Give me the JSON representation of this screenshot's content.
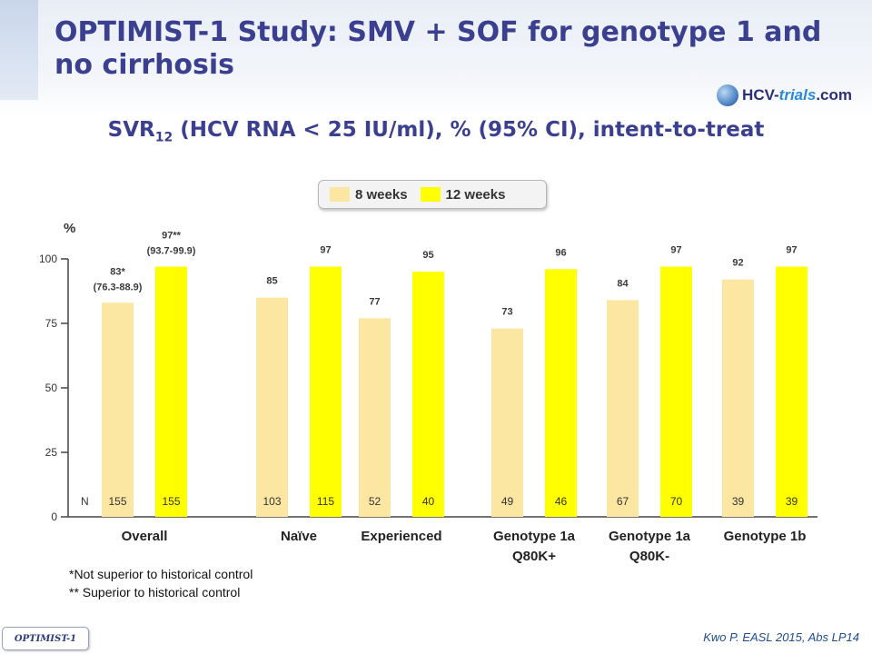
{
  "slide": {
    "title": "OPTIMIST-1 Study: SMV + SOF for genotype 1 and no cirrhosis",
    "brand": {
      "prefix": "HCV-",
      "highlight": "trials",
      "suffix": ".com"
    },
    "subtitle_main": "SVR",
    "subtitle_sub": "12",
    "subtitle_rest": " (HCV RNA < 25 IU/ml), % (95% CI), intent-to-treat",
    "footnotes": [
      "*Not superior to historical control",
      "** Superior to historical control"
    ],
    "tag": "OPTIMIST-1",
    "citation": "Kwo P. EASL 2015, Abs LP14"
  },
  "colors": {
    "weeks8": "#fbe6a2",
    "weeks12": "#ffff00",
    "title": "#3b3f8f",
    "axis": "#444444",
    "value_label": "#3b3b3b"
  },
  "chart_data": {
    "type": "bar",
    "ylabel": "%",
    "ylim": [
      0,
      100
    ],
    "yticks": [
      0,
      25,
      50,
      75,
      100
    ],
    "n_label": "N",
    "categories": [
      "Overall",
      "Naïve",
      "Experienced",
      "Genotype 1a\nQ80K+",
      "Genotype 1a\nQ80K-",
      "Genotype 1b"
    ],
    "series": [
      {
        "name": "8 weeks",
        "values": [
          83,
          85,
          77,
          73,
          84,
          92
        ],
        "labels": [
          "83*",
          "85",
          "77",
          "73",
          "84",
          "92"
        ],
        "ci": [
          "(76.3-88.9)",
          "",
          "",
          "",
          "",
          ""
        ],
        "n": [
          155,
          103,
          52,
          49,
          67,
          39
        ]
      },
      {
        "name": "12 weeks",
        "values": [
          97,
          97,
          95,
          96,
          97,
          97
        ],
        "labels": [
          "97**",
          "97",
          "95",
          "96",
          "97",
          "97"
        ],
        "ci": [
          "(93.7-99.9)",
          "",
          "",
          "",
          "",
          ""
        ],
        "n": [
          155,
          115,
          40,
          46,
          70,
          39
        ]
      }
    ]
  }
}
